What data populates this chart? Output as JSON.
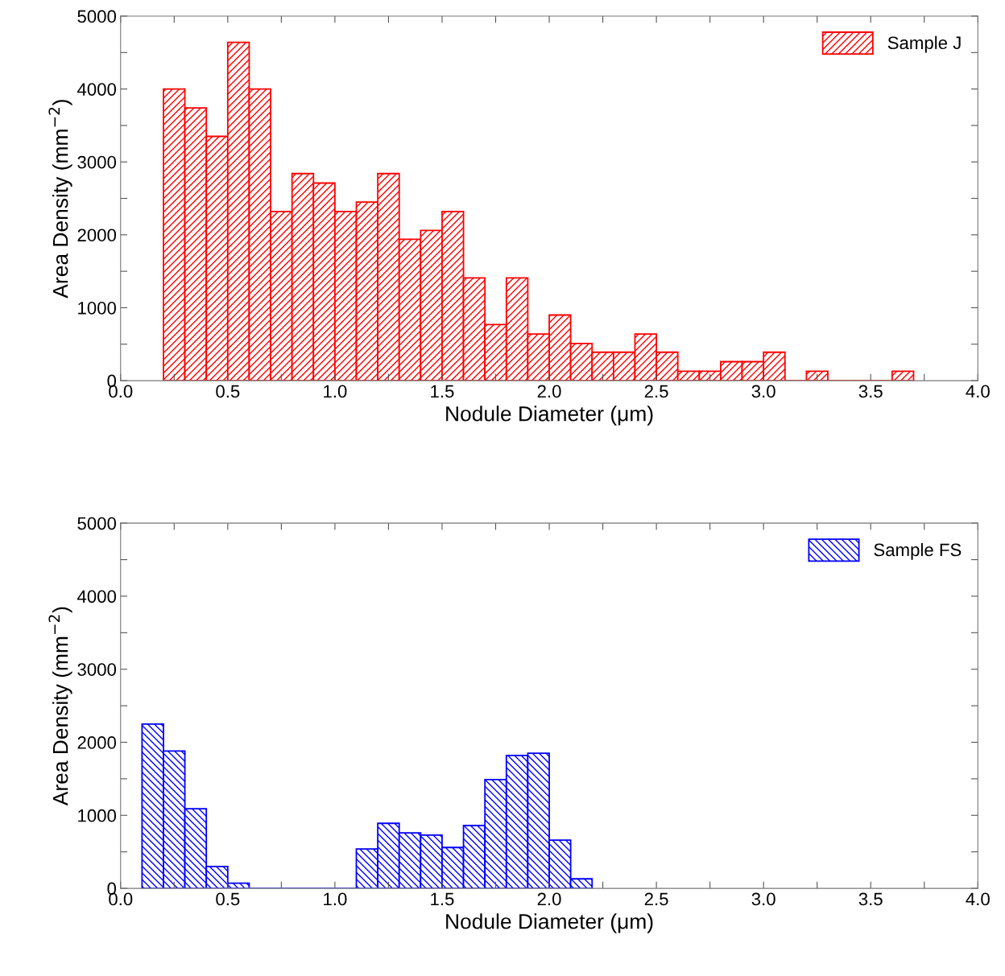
{
  "chart_data": [
    {
      "type": "histogram",
      "xlabel": "Nodule Diameter (μm)",
      "ylabel": "Area Density (mm$^{−2}$)",
      "bins": [
        0.2,
        0.3,
        0.4,
        0.5,
        0.6,
        0.7,
        0.8,
        0.9,
        1.0,
        1.1,
        1.2,
        1.3,
        1.4,
        1.5,
        1.6,
        1.7,
        1.8,
        1.9,
        2.0,
        2.1,
        2.2,
        2.3,
        2.4,
        2.5,
        2.6,
        2.7,
        2.8,
        2.9,
        3.0,
        3.1,
        3.2,
        3.3,
        3.4,
        3.5,
        3.6,
        3.7
      ],
      "series": [
        {
          "name": "Sample J",
          "color": "#ff0000",
          "values": [
            4000,
            3740,
            3350,
            4640,
            4000,
            2320,
            2840,
            2710,
            2320,
            2450,
            2840,
            1940,
            2060,
            2320,
            1410,
            770,
            1410,
            640,
            900,
            510,
            390,
            390,
            640,
            390,
            130,
            130,
            260,
            260,
            390,
            0,
            130,
            0,
            0,
            0,
            130
          ]
        }
      ],
      "xlim": [
        0,
        4
      ],
      "xticks": [
        {
          "value": 0,
          "label": "0.0"
        },
        {
          "value": 0.25,
          "label": null
        },
        0.5,
        {
          "value": 0.75,
          "label": null
        },
        {
          "value": 1,
          "label": "1.0"
        },
        {
          "value": 1.25,
          "label": null
        },
        1.5,
        {
          "value": 1.75,
          "label": null
        },
        {
          "value": 2,
          "label": "2.0"
        },
        {
          "value": 2.25,
          "label": null
        },
        2.5,
        {
          "value": 2.75,
          "label": null
        },
        {
          "value": 3,
          "label": "3.0"
        },
        {
          "value": 3.25,
          "label": null
        },
        3.5,
        {
          "value": 3.75,
          "label": null
        },
        {
          "value": 4,
          "label": "4.0"
        }
      ],
      "ylim": [
        0,
        5000
      ],
      "yticks": [
        0,
        {
          "value": 500,
          "label": null
        },
        1000,
        {
          "value": 1500,
          "label": null
        },
        2000,
        {
          "value": 2500,
          "label": null
        },
        3000,
        {
          "value": 3500,
          "label": null
        },
        4000,
        {
          "value": 4500,
          "label": null
        },
        5000
      ],
      "legend": "top right"
    },
    {
      "type": "histogram",
      "xlabel": "Nodule Diameter (μm)",
      "ylabel": "Area Density (mm$^{−2}$)",
      "bins": [
        0.1,
        0.2,
        0.3,
        0.4,
        0.5,
        0.6,
        0.7,
        0.8,
        0.9,
        1.0,
        1.1,
        1.2,
        1.3,
        1.4,
        1.5,
        1.6,
        1.7,
        1.8,
        1.9,
        2.0,
        2.1,
        2.2
      ],
      "series": [
        {
          "name": "Sample FS",
          "color": "#0000ff",
          "values": [
            2250,
            1880,
            1090,
            300,
            70,
            0,
            0,
            0,
            0,
            0,
            540,
            890,
            760,
            730,
            560,
            860,
            1490,
            1820,
            1850,
            660,
            130
          ]
        }
      ],
      "xlim": [
        0,
        4
      ],
      "xticks": [
        {
          "value": 0,
          "label": "0.0"
        },
        {
          "value": 0.25,
          "label": null
        },
        0.5,
        {
          "value": 0.75,
          "label": null
        },
        {
          "value": 1,
          "label": "1.0"
        },
        {
          "value": 1.25,
          "label": null
        },
        1.5,
        {
          "value": 1.75,
          "label": null
        },
        {
          "value": 2,
          "label": "2.0"
        },
        {
          "value": 2.25,
          "label": null
        },
        2.5,
        {
          "value": 2.75,
          "label": null
        },
        {
          "value": 3,
          "label": "3.0"
        },
        {
          "value": 3.25,
          "label": null
        },
        3.5,
        {
          "value": 3.75,
          "label": null
        },
        {
          "value": 4,
          "label": "4.0"
        }
      ],
      "ylim": [
        0,
        5000
      ],
      "yticks": [
        0,
        {
          "value": 500,
          "label": null
        },
        1000,
        {
          "value": 1500,
          "label": null
        },
        2000,
        {
          "value": 2500,
          "label": null
        },
        3000,
        {
          "value": 3500,
          "label": null
        },
        4000,
        {
          "value": 4500,
          "label": null
        },
        5000
      ],
      "legend": "top right"
    }
  ]
}
